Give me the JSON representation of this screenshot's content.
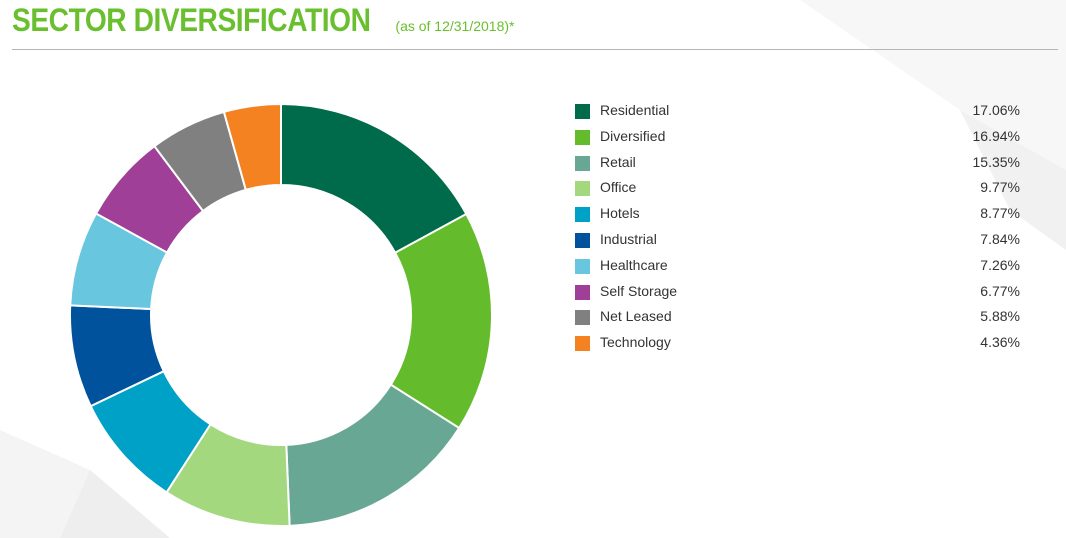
{
  "header": {
    "title": "SECTOR DIVERSIFICATION",
    "subtitle": "(as of 12/31/2018)*"
  },
  "chart_data": {
    "type": "pie",
    "donut": true,
    "legend_position": "right",
    "categories": [
      "Residential",
      "Diversified",
      "Retail",
      "Office",
      "Hotels",
      "Industrial",
      "Healthcare",
      "Self Storage",
      "Net Leased",
      "Technology"
    ],
    "values": [
      17.06,
      16.94,
      15.35,
      9.77,
      8.77,
      7.84,
      7.26,
      6.77,
      5.88,
      4.36
    ],
    "labels": [
      "17.06%",
      "16.94%",
      "15.35%",
      "9.77%",
      "8.77%",
      "7.84%",
      "7.26%",
      "6.77%",
      "5.88%",
      "4.36%"
    ],
    "colors": [
      "#006b4b",
      "#64bc2d",
      "#67a793",
      "#a4d87e",
      "#00a1c7",
      "#00529c",
      "#68c6df",
      "#a03f97",
      "#808080",
      "#f58220"
    ]
  }
}
